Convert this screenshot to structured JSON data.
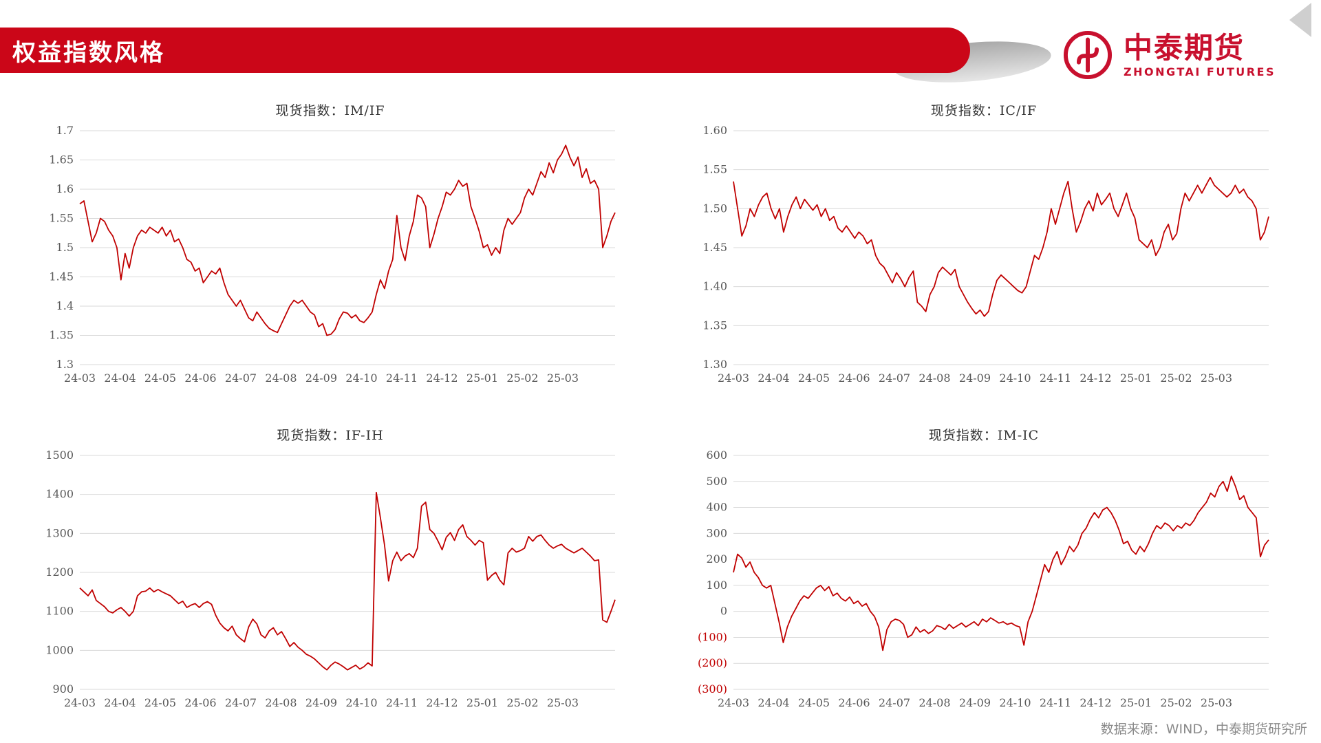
{
  "page": {
    "title": "权益指数风格",
    "logo": {
      "brand": "中泰期货",
      "brand_en": "ZHONGTAI FUTURES"
    },
    "footer": "数据来源：WIND，中泰期货研究所",
    "colors": {
      "accent": "#cb0618",
      "line": "#c00000",
      "grid": "#d9d9d9",
      "axis_text": "#595959",
      "negative_tick": "#c00000"
    }
  },
  "chart_data": [
    {
      "type": "line",
      "title": "现货指数：IM/IF",
      "ylim": [
        1.3,
        1.7
      ],
      "y_ticks": [
        "1.7",
        "1.65",
        "1.6",
        "1.55",
        "1.5",
        "1.45",
        "1.4",
        "1.35",
        "1.3"
      ],
      "x_ticks": [
        "24-03",
        "24-04",
        "24-05",
        "24-06",
        "24-07",
        "24-08",
        "24-09",
        "24-10",
        "24-11",
        "24-12",
        "25-01",
        "25-02",
        "25-03"
      ],
      "values": [
        1.575,
        1.58,
        1.545,
        1.51,
        1.525,
        1.55,
        1.545,
        1.53,
        1.52,
        1.5,
        1.445,
        1.49,
        1.465,
        1.5,
        1.52,
        1.53,
        1.525,
        1.535,
        1.53,
        1.525,
        1.535,
        1.52,
        1.53,
        1.51,
        1.515,
        1.5,
        1.48,
        1.475,
        1.46,
        1.465,
        1.44,
        1.45,
        1.46,
        1.455,
        1.465,
        1.44,
        1.42,
        1.41,
        1.4,
        1.41,
        1.395,
        1.38,
        1.375,
        1.39,
        1.38,
        1.37,
        1.362,
        1.358,
        1.355,
        1.37,
        1.385,
        1.4,
        1.41,
        1.405,
        1.41,
        1.4,
        1.39,
        1.385,
        1.365,
        1.37,
        1.35,
        1.352,
        1.36,
        1.378,
        1.39,
        1.388,
        1.38,
        1.385,
        1.375,
        1.372,
        1.38,
        1.39,
        1.42,
        1.445,
        1.43,
        1.46,
        1.48,
        1.555,
        1.5,
        1.478,
        1.52,
        1.545,
        1.59,
        1.585,
        1.57,
        1.5,
        1.523,
        1.55,
        1.57,
        1.595,
        1.59,
        1.6,
        1.615,
        1.605,
        1.61,
        1.57,
        1.55,
        1.528,
        1.5,
        1.505,
        1.487,
        1.5,
        1.49,
        1.53,
        1.55,
        1.54,
        1.55,
        1.56,
        1.585,
        1.6,
        1.59,
        1.61,
        1.63,
        1.62,
        1.645,
        1.628,
        1.65,
        1.66,
        1.675,
        1.655,
        1.64,
        1.655,
        1.62,
        1.635,
        1.61,
        1.615,
        1.6,
        1.5,
        1.52,
        1.545,
        1.56
      ]
    },
    {
      "type": "line",
      "title": "现货指数：IC/IF",
      "ylim": [
        1.3,
        1.6
      ],
      "y_ticks": [
        "1.60",
        "1.55",
        "1.50",
        "1.45",
        "1.40",
        "1.35",
        "1.30"
      ],
      "x_ticks": [
        "24-03",
        "24-04",
        "24-05",
        "24-06",
        "24-07",
        "24-08",
        "24-09",
        "24-10",
        "24-11",
        "24-12",
        "25-01",
        "25-02",
        "25-03"
      ],
      "values": [
        1.535,
        1.5,
        1.465,
        1.478,
        1.5,
        1.49,
        1.505,
        1.515,
        1.52,
        1.5,
        1.487,
        1.5,
        1.47,
        1.49,
        1.505,
        1.515,
        1.5,
        1.512,
        1.505,
        1.498,
        1.505,
        1.49,
        1.5,
        1.485,
        1.49,
        1.475,
        1.47,
        1.478,
        1.47,
        1.462,
        1.47,
        1.465,
        1.455,
        1.46,
        1.44,
        1.43,
        1.425,
        1.415,
        1.405,
        1.418,
        1.41,
        1.4,
        1.412,
        1.42,
        1.38,
        1.375,
        1.368,
        1.39,
        1.4,
        1.418,
        1.425,
        1.42,
        1.415,
        1.422,
        1.4,
        1.39,
        1.38,
        1.372,
        1.365,
        1.37,
        1.362,
        1.368,
        1.39,
        1.408,
        1.415,
        1.41,
        1.405,
        1.4,
        1.395,
        1.392,
        1.4,
        1.42,
        1.44,
        1.435,
        1.45,
        1.47,
        1.5,
        1.48,
        1.5,
        1.52,
        1.535,
        1.5,
        1.47,
        1.483,
        1.5,
        1.51,
        1.497,
        1.52,
        1.505,
        1.512,
        1.52,
        1.5,
        1.49,
        1.505,
        1.52,
        1.5,
        1.488,
        1.46,
        1.455,
        1.45,
        1.46,
        1.44,
        1.45,
        1.47,
        1.48,
        1.46,
        1.468,
        1.5,
        1.52,
        1.51,
        1.52,
        1.53,
        1.52,
        1.53,
        1.54,
        1.53,
        1.525,
        1.52,
        1.515,
        1.52,
        1.53,
        1.52,
        1.525,
        1.515,
        1.51,
        1.5,
        1.46,
        1.47,
        1.49
      ]
    },
    {
      "type": "line",
      "title": "现货指数：IF-IH",
      "ylim": [
        900,
        1500
      ],
      "y_ticks": [
        "1500",
        "1400",
        "1300",
        "1200",
        "1100",
        "1000",
        "900"
      ],
      "x_ticks": [
        "24-03",
        "24-04",
        "24-05",
        "24-06",
        "24-07",
        "24-08",
        "24-09",
        "24-10",
        "24-11",
        "24-12",
        "25-01",
        "25-02",
        "25-03"
      ],
      "values": [
        1160,
        1150,
        1140,
        1155,
        1128,
        1120,
        1112,
        1100,
        1096,
        1104,
        1110,
        1100,
        1088,
        1100,
        1140,
        1150,
        1152,
        1160,
        1150,
        1156,
        1150,
        1145,
        1140,
        1130,
        1120,
        1126,
        1110,
        1116,
        1120,
        1110,
        1120,
        1125,
        1118,
        1090,
        1070,
        1058,
        1050,
        1062,
        1040,
        1030,
        1022,
        1060,
        1080,
        1068,
        1040,
        1032,
        1050,
        1058,
        1040,
        1048,
        1030,
        1010,
        1020,
        1008,
        1000,
        990,
        985,
        978,
        968,
        958,
        950,
        962,
        970,
        965,
        958,
        950,
        956,
        962,
        952,
        958,
        968,
        960,
        1405,
        1340,
        1270,
        1178,
        1230,
        1252,
        1230,
        1242,
        1248,
        1238,
        1262,
        1370,
        1380,
        1310,
        1300,
        1280,
        1258,
        1290,
        1302,
        1282,
        1310,
        1322,
        1292,
        1282,
        1270,
        1282,
        1276,
        1180,
        1192,
        1200,
        1180,
        1168,
        1250,
        1262,
        1252,
        1256,
        1262,
        1292,
        1280,
        1292,
        1296,
        1282,
        1270,
        1262,
        1268,
        1272,
        1262,
        1256,
        1250,
        1256,
        1262,
        1252,
        1242,
        1230,
        1232,
        1078,
        1072,
        1100,
        1130
      ]
    },
    {
      "type": "line",
      "title": "现货指数：IM-IC",
      "ylim": [
        -300,
        600
      ],
      "y_ticks": [
        "600",
        "500",
        "400",
        "300",
        "200",
        "100",
        "0",
        "(100)",
        "(200)",
        "(300)"
      ],
      "x_ticks": [
        "24-03",
        "24-04",
        "24-05",
        "24-06",
        "24-07",
        "24-08",
        "24-09",
        "24-10",
        "24-11",
        "24-12",
        "25-01",
        "25-02",
        "25-03"
      ],
      "values": [
        150,
        220,
        205,
        170,
        190,
        150,
        130,
        100,
        90,
        100,
        30,
        -40,
        -120,
        -60,
        -20,
        10,
        40,
        60,
        50,
        70,
        90,
        100,
        80,
        95,
        60,
        70,
        50,
        40,
        55,
        30,
        40,
        20,
        30,
        0,
        -20,
        -60,
        -150,
        -70,
        -40,
        -30,
        -35,
        -50,
        -100,
        -90,
        -60,
        -80,
        -70,
        -85,
        -75,
        -55,
        -60,
        -70,
        -50,
        -65,
        -55,
        -45,
        -60,
        -50,
        -40,
        -55,
        -30,
        -40,
        -25,
        -35,
        -45,
        -40,
        -50,
        -45,
        -55,
        -60,
        -130,
        -40,
        0,
        60,
        120,
        180,
        150,
        200,
        230,
        180,
        210,
        250,
        230,
        255,
        300,
        320,
        355,
        380,
        360,
        390,
        400,
        380,
        350,
        310,
        260,
        270,
        235,
        220,
        250,
        230,
        260,
        300,
        330,
        318,
        340,
        330,
        310,
        330,
        320,
        340,
        330,
        350,
        380,
        400,
        420,
        455,
        440,
        480,
        500,
        462,
        520,
        480,
        430,
        445,
        400,
        380,
        360,
        210,
        255,
        275
      ]
    }
  ]
}
